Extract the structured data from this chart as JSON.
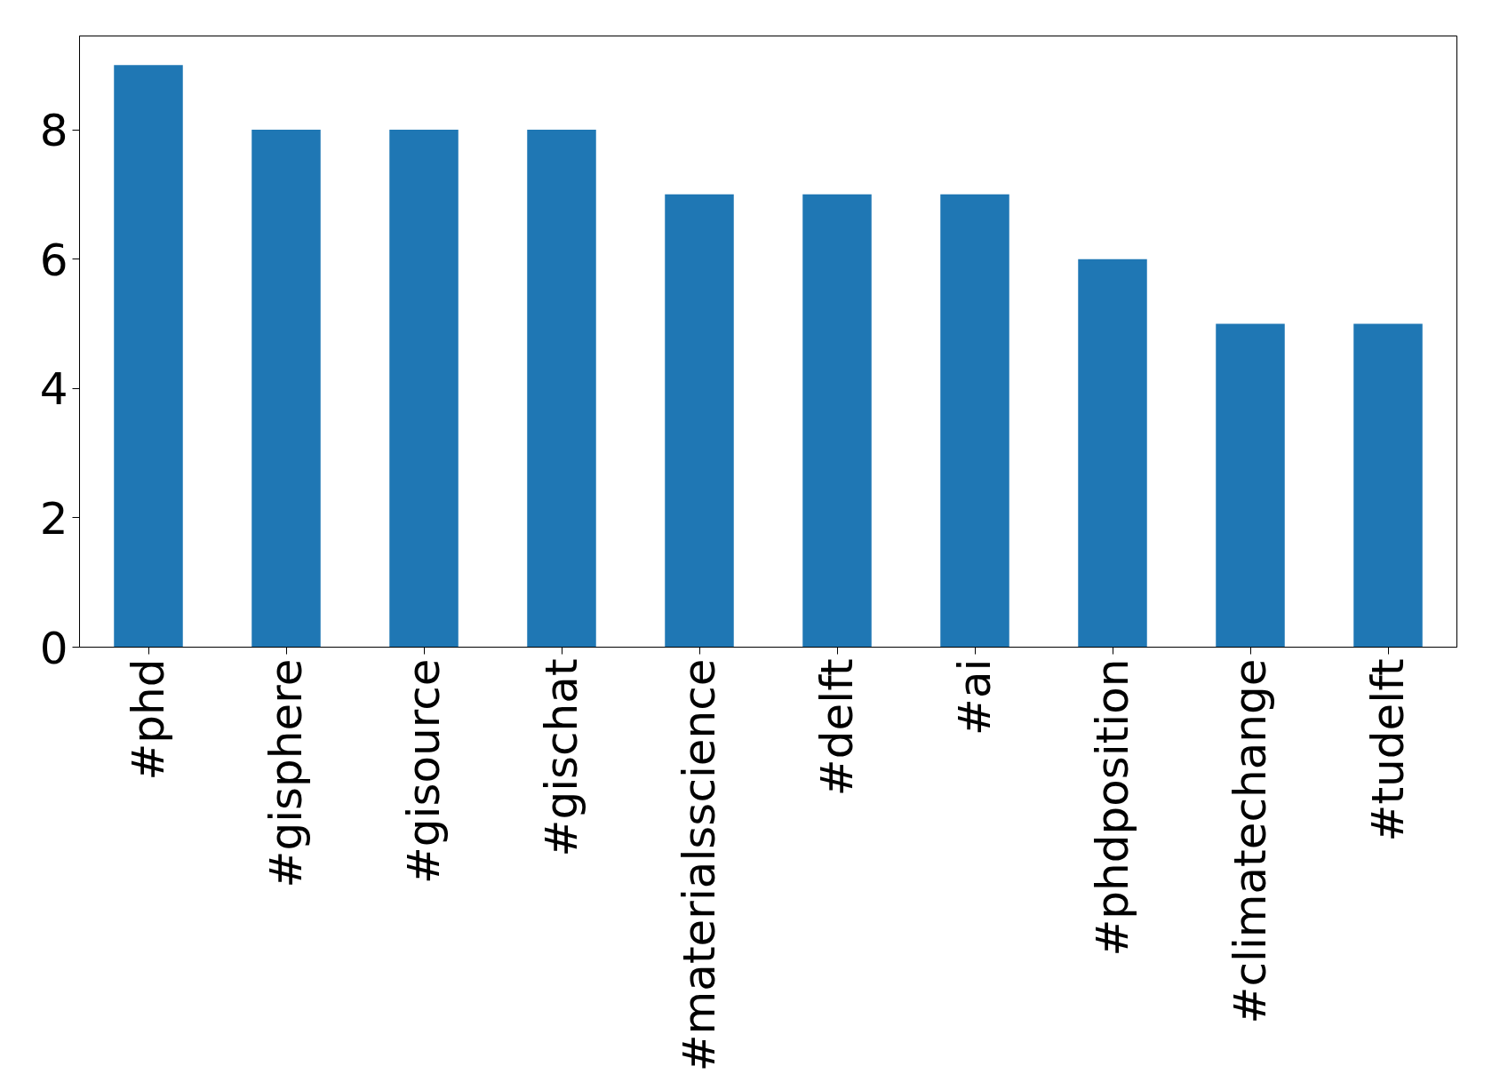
{
  "chart_data": {
    "type": "bar",
    "categories": [
      "#phd",
      "#gisphere",
      "#gisource",
      "#gischat",
      "#materialsscience",
      "#delft",
      "#ai",
      "#phdposition",
      "#climatechange",
      "#tudelft"
    ],
    "values": [
      9,
      8,
      8,
      8,
      7,
      7,
      7,
      6,
      5,
      5
    ],
    "color": "#1f77b4",
    "ylim": [
      0,
      9.45
    ],
    "yticks": [
      0,
      2,
      4,
      6,
      8
    ],
    "grid": false
  }
}
